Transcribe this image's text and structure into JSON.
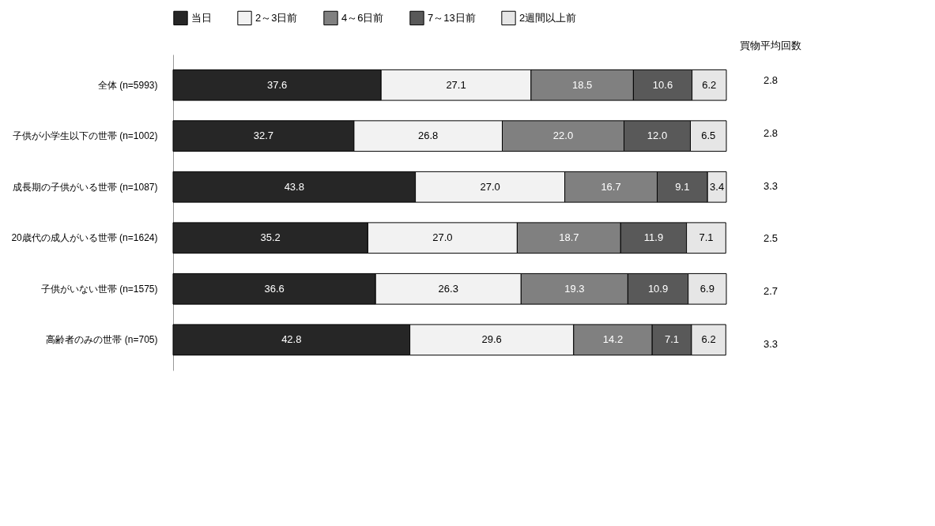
{
  "chart_data": {
    "type": "bar",
    "orientation": "horizontal",
    "stacked": true,
    "legend": "top",
    "xlim": [
      0,
      100
    ],
    "categories": [
      "全体 (n=5993)",
      "子供が小学生以下の世帯 (n=1002)",
      "成長期の子供がいる世帯 (n=1087)",
      "20歳代の成人がいる世帯 (n=1624)",
      "子供がいない世帯 (n=1575)",
      "高齢者のみの世帯 (n=705)"
    ],
    "series": [
      {
        "name": "当日",
        "color": "#262626",
        "values": [
          37.6,
          32.7,
          43.8,
          35.2,
          36.6,
          42.8
        ],
        "value_labels": [
          "37.6",
          "32.7",
          "43.8",
          "35.2",
          "36.6",
          "42.8"
        ]
      },
      {
        "name": "2～3日前",
        "color": "#f2f2f2",
        "values": [
          27.1,
          26.8,
          27.0,
          27.0,
          26.3,
          29.6
        ],
        "value_labels": [
          "27.1",
          "26.8",
          "27.0",
          "27.0",
          "26.3",
          "29.6"
        ]
      },
      {
        "name": "4～6日前",
        "color": "#808080",
        "values": [
          18.5,
          22.0,
          16.7,
          18.7,
          19.3,
          14.2
        ],
        "value_labels": [
          "18.5",
          "22.0",
          "16.7",
          "18.7",
          "19.3",
          "14.2"
        ]
      },
      {
        "name": "7～13日前",
        "color": "#595959",
        "values": [
          10.6,
          12.0,
          9.1,
          11.9,
          10.9,
          7.1
        ],
        "value_labels": [
          "10.6",
          "12.0",
          "9.1",
          "11.9",
          "10.9",
          "7.1"
        ]
      },
      {
        "name": "2週間以上前",
        "color": "#e6e6e6",
        "values": [
          6.2,
          6.5,
          3.4,
          7.1,
          6.9,
          6.2
        ],
        "value_labels": [
          "6.2",
          "6.5",
          "3.4",
          "7.1",
          "6.9",
          "6.2"
        ]
      }
    ],
    "annotations": [
      "買物平均回数",
      "2.8",
      "2.8",
      "3.3",
      "2.5",
      "2.7",
      "3.3"
    ]
  }
}
